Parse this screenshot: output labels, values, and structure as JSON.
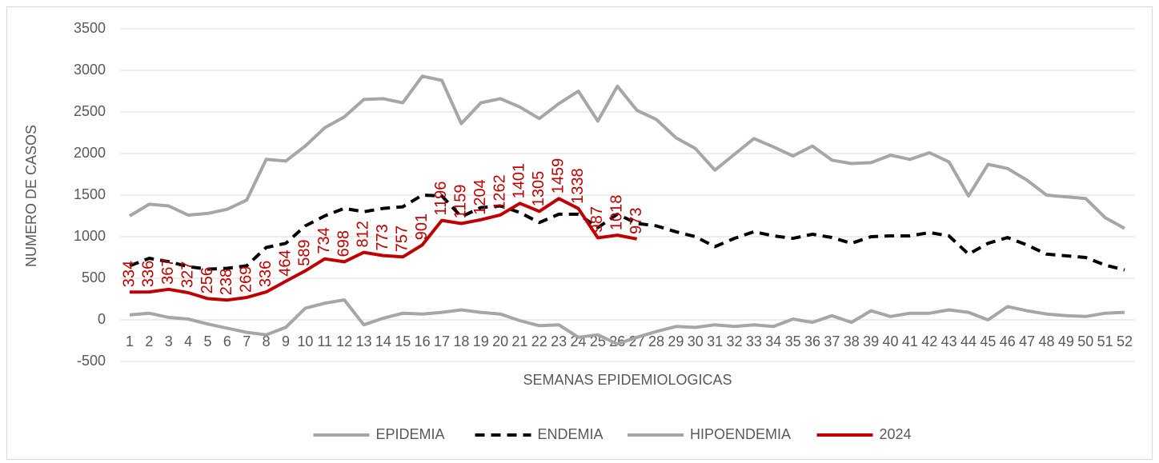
{
  "chart_data": {
    "type": "line",
    "y_label": "NUMERO DE CASOS",
    "x_label": "SEMANAS EPIDEMIOLOGICAS",
    "categories": [
      "1",
      "2",
      "3",
      "4",
      "5",
      "6",
      "7",
      "8",
      "9",
      "10",
      "11",
      "12",
      "13",
      "14",
      "15",
      "16",
      "17",
      "18",
      "19",
      "20",
      "21",
      "22",
      "23",
      "24",
      "25",
      "26",
      "27",
      "28",
      "29",
      "30",
      "31",
      "32",
      "33",
      "34",
      "35",
      "36",
      "37",
      "38",
      "39",
      "40",
      "41",
      "42",
      "43",
      "44",
      "45",
      "46",
      "47",
      "48",
      "49",
      "50",
      "51",
      "52"
    ],
    "ylim": [
      -500,
      3500
    ],
    "yticks": [
      -500,
      0,
      500,
      1000,
      1500,
      2000,
      2500,
      3000,
      3500
    ],
    "grid": true,
    "legend": "bottom",
    "series": [
      {
        "name": "EPIDEMIA",
        "color": "#a6a6a6",
        "dashed": false,
        "data_labels": false,
        "values": [
          1250,
          1390,
          1370,
          1260,
          1280,
          1330,
          1440,
          1930,
          1910,
          2090,
          2310,
          2440,
          2650,
          2660,
          2610,
          2930,
          2880,
          2360,
          2610,
          2660,
          2560,
          2420,
          2600,
          2750,
          2390,
          2810,
          2520,
          2410,
          2190,
          2060,
          1800,
          1990,
          2180,
          2080,
          1970,
          2090,
          1920,
          1880,
          1890,
          1980,
          1930,
          2010,
          1900,
          1490,
          1870,
          1820,
          1680,
          1500,
          1480,
          1460,
          1230,
          1100
        ]
      },
      {
        "name": "ENDEMIA",
        "color": "#000000",
        "dashed": true,
        "data_labels": false,
        "values": [
          650,
          740,
          700,
          640,
          610,
          620,
          650,
          870,
          920,
          1130,
          1250,
          1340,
          1300,
          1340,
          1360,
          1500,
          1490,
          1240,
          1350,
          1370,
          1290,
          1170,
          1270,
          1270,
          1110,
          1270,
          1160,
          1130,
          1060,
          1000,
          880,
          980,
          1060,
          1010,
          980,
          1030,
          990,
          920,
          1000,
          1010,
          1010,
          1050,
          1010,
          790,
          920,
          990,
          900,
          790,
          770,
          750,
          660,
          600
        ]
      },
      {
        "name": "HIPOENDEMIA",
        "color": "#a6a6a6",
        "dashed": false,
        "data_labels": false,
        "values": [
          60,
          80,
          30,
          10,
          -50,
          -100,
          -150,
          -180,
          -90,
          140,
          200,
          240,
          -60,
          20,
          80,
          70,
          90,
          120,
          90,
          70,
          -10,
          -70,
          -60,
          -210,
          -180,
          -290,
          -210,
          -140,
          -80,
          -90,
          -60,
          -80,
          -60,
          -80,
          10,
          -30,
          50,
          -30,
          110,
          40,
          80,
          80,
          120,
          90,
          0,
          160,
          110,
          70,
          50,
          40,
          80,
          90
        ]
      },
      {
        "name": "2024",
        "color": "#c00000",
        "dashed": false,
        "data_labels": true,
        "values": [
          334,
          336,
          367,
          327,
          256,
          238,
          269,
          336,
          464,
          589,
          734,
          698,
          812,
          773,
          757,
          901,
          1196,
          1159,
          1204,
          1262,
          1401,
          1305,
          1459,
          1338,
          987,
          1018,
          973,
          null,
          null,
          null,
          null,
          null,
          null,
          null,
          null,
          null,
          null,
          null,
          null,
          null,
          null,
          null,
          null,
          null,
          null,
          null,
          null,
          null,
          null,
          null,
          null,
          null
        ]
      }
    ]
  }
}
